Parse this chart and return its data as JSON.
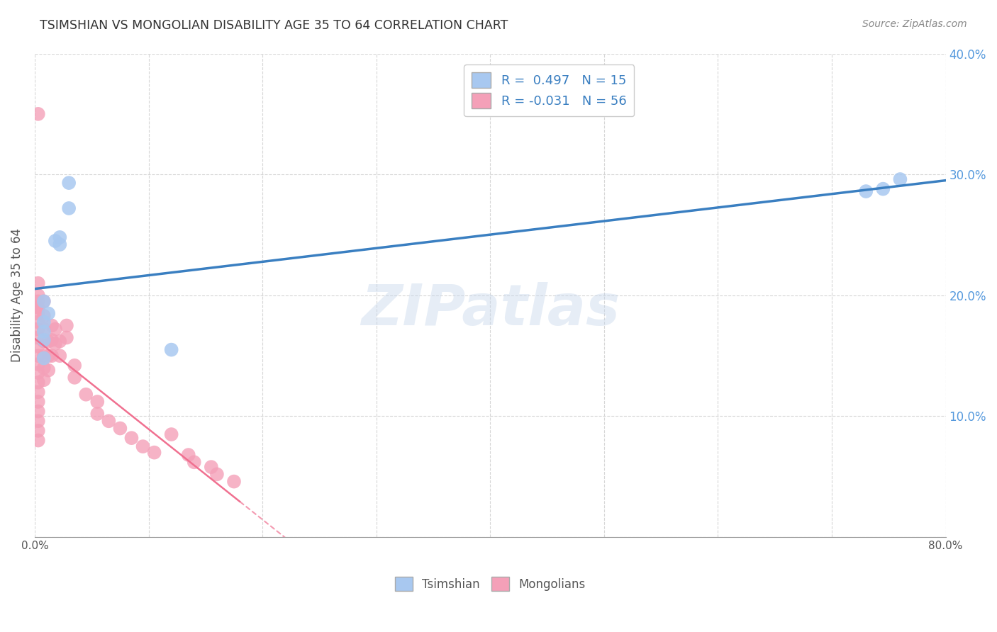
{
  "title": "TSIMSHIAN VS MONGOLIAN DISABILITY AGE 35 TO 64 CORRELATION CHART",
  "source": "Source: ZipAtlas.com",
  "ylabel": "Disability Age 35 to 64",
  "xlim": [
    0.0,
    0.8
  ],
  "ylim": [
    0.0,
    0.4
  ],
  "tsimshian_R": 0.497,
  "tsimshian_N": 15,
  "mongolian_R": -0.031,
  "mongolian_N": 56,
  "tsimshian_color": "#a8c8f0",
  "mongolian_color": "#f4a0b8",
  "tsimshian_line_color": "#3a7fc1",
  "mongolian_line_color": "#f07090",
  "watermark": "ZIPatlas",
  "tsimshian_x": [
    0.008,
    0.008,
    0.008,
    0.008,
    0.008,
    0.012,
    0.018,
    0.022,
    0.022,
    0.03,
    0.03,
    0.12,
    0.73,
    0.745,
    0.76
  ],
  "tsimshian_y": [
    0.195,
    0.178,
    0.17,
    0.163,
    0.148,
    0.185,
    0.245,
    0.242,
    0.248,
    0.293,
    0.272,
    0.155,
    0.286,
    0.288,
    0.296
  ],
  "mongolian_x": [
    0.003,
    0.003,
    0.003,
    0.003,
    0.003,
    0.003,
    0.003,
    0.003,
    0.003,
    0.003,
    0.003,
    0.003,
    0.003,
    0.003,
    0.003,
    0.003,
    0.003,
    0.003,
    0.003,
    0.003,
    0.003,
    0.008,
    0.008,
    0.008,
    0.008,
    0.008,
    0.008,
    0.008,
    0.012,
    0.012,
    0.012,
    0.015,
    0.015,
    0.015,
    0.018,
    0.018,
    0.022,
    0.022,
    0.028,
    0.028,
    0.035,
    0.035,
    0.045,
    0.055,
    0.055,
    0.065,
    0.075,
    0.085,
    0.095,
    0.105,
    0.12,
    0.135,
    0.14,
    0.155,
    0.16,
    0.175
  ],
  "mongolian_y": [
    0.35,
    0.21,
    0.2,
    0.195,
    0.19,
    0.185,
    0.178,
    0.172,
    0.165,
    0.158,
    0.15,
    0.143,
    0.136,
    0.128,
    0.12,
    0.112,
    0.104,
    0.096,
    0.088,
    0.08,
    0.19,
    0.195,
    0.183,
    0.172,
    0.162,
    0.15,
    0.14,
    0.13,
    0.162,
    0.15,
    0.138,
    0.175,
    0.163,
    0.15,
    0.172,
    0.16,
    0.162,
    0.15,
    0.175,
    0.165,
    0.142,
    0.132,
    0.118,
    0.112,
    0.102,
    0.096,
    0.09,
    0.082,
    0.075,
    0.07,
    0.085,
    0.068,
    0.062,
    0.058,
    0.052,
    0.046
  ],
  "legend_top_label1": "R =  0.497   N = 15",
  "legend_top_label2": "R = -0.031   N = 56",
  "legend_bottom_label1": "Tsimshian",
  "legend_bottom_label2": "Mongolians"
}
